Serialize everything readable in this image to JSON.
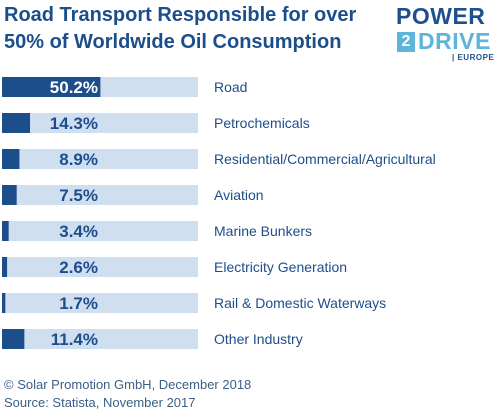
{
  "title": "Road Transport Responsible for over 50% of Worldwide Oil Consumption",
  "logo": {
    "power": "POWER",
    "two": "2",
    "drive": "DRIVE",
    "europe": "| EUROPE"
  },
  "footer": {
    "copyright": "© Solar Promotion GmbH, December 2018",
    "source": "Source: Statista, November 2017"
  },
  "colors": {
    "track": "#cfdff0",
    "bar": "#1d4e8c",
    "label_text": "#1d4e8c",
    "category_text": "#1d4e8c"
  },
  "chart_data": {
    "type": "bar",
    "orientation": "horizontal",
    "categories": [
      "Road",
      "Petrochemicals",
      "Residential/Commercial/Agricultural",
      "Aviation",
      "Marine Bunkers",
      "Electricity Generation",
      "Rail & Domestic Waterways",
      "Other Industry"
    ],
    "values": [
      50.2,
      14.3,
      8.9,
      7.5,
      3.4,
      2.6,
      1.7,
      11.4
    ],
    "labels": [
      "50.2%",
      "14.3%",
      "8.9%",
      "7.5%",
      "3.4%",
      "2.6%",
      "1.7%",
      "11.4%"
    ],
    "xlim": [
      0,
      100
    ],
    "unit": "%"
  }
}
